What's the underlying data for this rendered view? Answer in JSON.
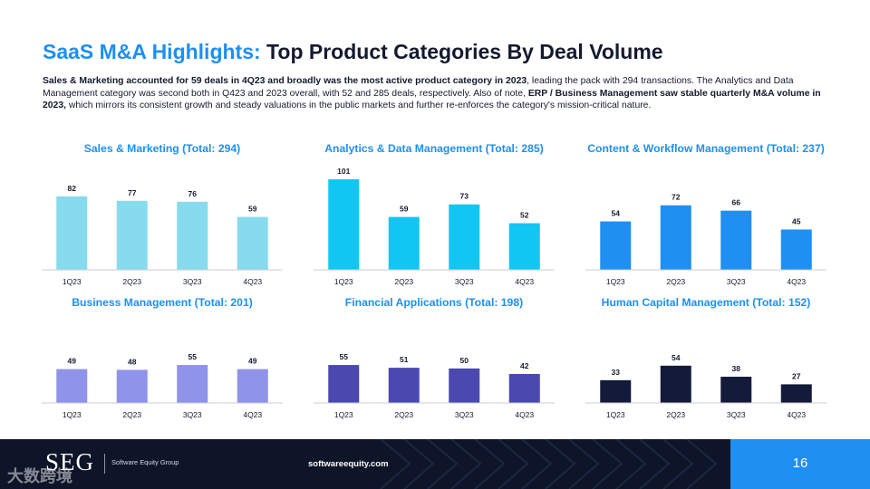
{
  "header": {
    "title_accent": "SaaS M&A Highlights:",
    "title_rest": " Top Product Categories By Deal Volume"
  },
  "intro": {
    "p1": "Sales & Marketing accounted for 59 deals in 4Q23 and broadly was the most active product category in 2023",
    "p2": ", leading the pack with 294 transactions. The Analytics and Data Management category was second both in Q423 and 2023 overall, with 52 and 285 deals, respectively. Also of note, ",
    "p3": "ERP / Business Management saw stable quarterly M&A volume in 2023,",
    "p4": " which mirrors its consistent growth and steady valuations in the public markets and further re-enforces the category's mission-critical nature."
  },
  "chart_data": [
    {
      "type": "bar",
      "title": "Sales & Marketing (Total: 294)",
      "categories": [
        "1Q23",
        "2Q23",
        "3Q23",
        "4Q23"
      ],
      "values": [
        82,
        77,
        76,
        59
      ],
      "color": "#86dbef",
      "ymax": 101
    },
    {
      "type": "bar",
      "title": "Analytics & Data Management (Total: 285)",
      "categories": [
        "1Q23",
        "2Q23",
        "3Q23",
        "4Q23"
      ],
      "values": [
        101,
        59,
        73,
        52
      ],
      "color": "#12c6f2",
      "ymax": 101
    },
    {
      "type": "bar",
      "title": "Content & Workflow Management (Total: 237)",
      "categories": [
        "1Q23",
        "2Q23",
        "3Q23",
        "4Q23"
      ],
      "values": [
        54,
        72,
        66,
        45
      ],
      "color": "#1f8ff2",
      "ymax": 101
    },
    {
      "type": "bar",
      "title": "Business Management (Total: 201)",
      "categories": [
        "1Q23",
        "2Q23",
        "3Q23",
        "4Q23"
      ],
      "values": [
        49,
        48,
        55,
        49
      ],
      "color": "#8f93ea",
      "ymax": 101
    },
    {
      "type": "bar",
      "title": "Financial Applications (Total: 198)",
      "categories": [
        "1Q23",
        "2Q23",
        "3Q23",
        "4Q23"
      ],
      "values": [
        55,
        51,
        50,
        42
      ],
      "color": "#4b49b0",
      "ymax": 101
    },
    {
      "type": "bar",
      "title": "Human Capital Management (Total: 152)",
      "categories": [
        "1Q23",
        "2Q23",
        "3Q23",
        "4Q23"
      ],
      "values": [
        33,
        54,
        38,
        27
      ],
      "color": "#141a3a",
      "ymax": 101
    }
  ],
  "footer": {
    "logo_text": "SEG",
    "logo_sub": "Software Equity Group",
    "website": "softwareequity.com",
    "page_number": "16",
    "watermark": "大数跨境"
  }
}
